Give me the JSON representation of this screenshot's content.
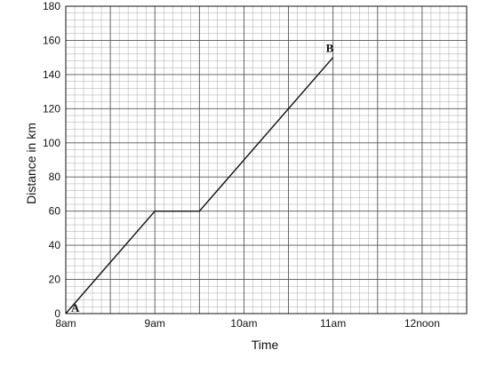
{
  "chart_data": {
    "type": "line",
    "title": "",
    "xlabel": "Time",
    "ylabel": "Distance in km",
    "x_ticks": [
      "8am",
      "9am",
      "10am",
      "11am",
      "12noon"
    ],
    "xlim_hours": [
      8,
      12.5
    ],
    "ylim": [
      0,
      180
    ],
    "y_ticks": [
      0,
      20,
      40,
      60,
      80,
      100,
      120,
      140,
      160,
      180
    ],
    "grid": true,
    "series": [
      {
        "x_hours": [
          8,
          9,
          9.5,
          11
        ],
        "y": [
          0,
          60,
          60,
          150
        ]
      }
    ],
    "annotations": [
      {
        "text": "A",
        "x_hours": 8,
        "y": 0
      },
      {
        "text": "B",
        "x_hours": 11,
        "y": 150
      }
    ]
  }
}
